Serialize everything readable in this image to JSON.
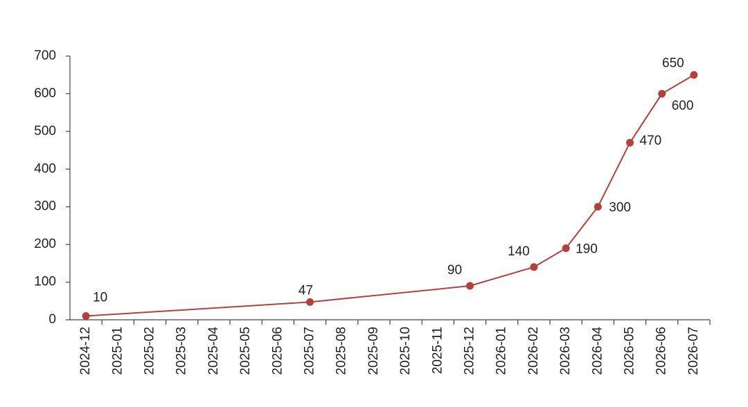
{
  "chart_data": {
    "type": "line",
    "categories": [
      "2024-12",
      "2025-01",
      "2025-02",
      "2025-03",
      "2025-04",
      "2025-05",
      "2025-06",
      "2025-07",
      "2025-08",
      "2025-09",
      "2025-10",
      "2025-11",
      "2025-12",
      "2026-01",
      "2026-02",
      "2026-03",
      "2026-04",
      "2026-05",
      "2026-06",
      "2026-07"
    ],
    "x": [
      "2024-12",
      "2025-07",
      "2025-12",
      "2026-02",
      "2026-03",
      "2026-04",
      "2026-05",
      "2026-06",
      "2026-07"
    ],
    "values": [
      10,
      47,
      90,
      140,
      190,
      300,
      470,
      600,
      650
    ],
    "color": "#b5403a",
    "ylim": [
      0,
      700
    ],
    "yticks": [
      0,
      100,
      200,
      300,
      400,
      500,
      600,
      700
    ]
  }
}
